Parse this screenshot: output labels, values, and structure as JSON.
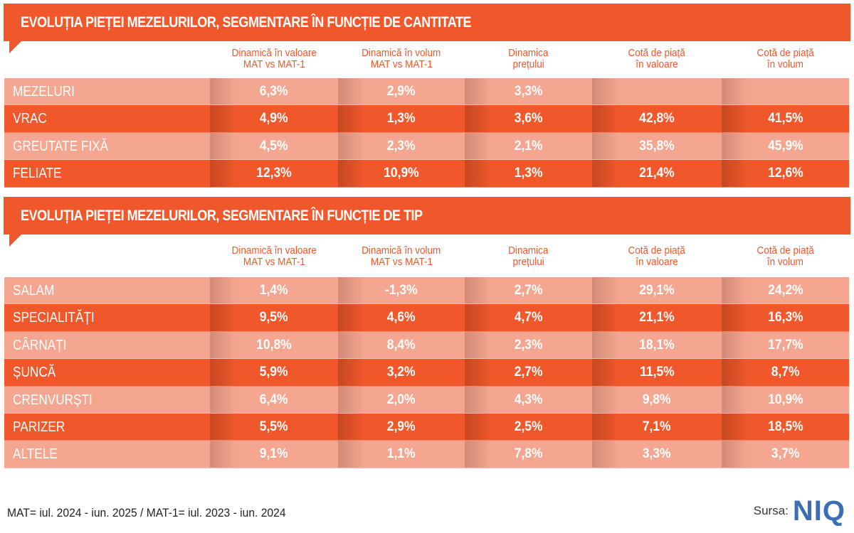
{
  "colors": {
    "accent": "#f0582b",
    "light_row": "#f4a690",
    "header_text": "#f0582b",
    "logo": "#3a6fb8"
  },
  "columns": [
    [
      "Dinamică în valoare",
      "MAT vs MAT-1"
    ],
    [
      "Dinamică în volum",
      "MAT vs MAT-1"
    ],
    [
      "Dinamica",
      "prețului"
    ],
    [
      "Cotă de piață",
      "în valoare"
    ],
    [
      "Cotă de piață",
      "în volum"
    ]
  ],
  "tables": [
    {
      "title": "EVOLUȚIA PIEȚEI MEZELURILOR, SEGMENTARE ÎN FUNCȚIE DE CANTITATE",
      "rows": [
        {
          "label": "MEZELURI",
          "values": [
            "6,3%",
            "2,9%",
            "3,3%",
            "",
            ""
          ]
        },
        {
          "label": "VRAC",
          "values": [
            "4,9%",
            "1,3%",
            "3,6%",
            "42,8%",
            "41,5%"
          ]
        },
        {
          "label": "GREUTATE FIXĂ",
          "values": [
            "4,5%",
            "2,3%",
            "2,1%",
            "35,8%",
            "45,9%"
          ]
        },
        {
          "label": "FELIATE",
          "values": [
            "12,3%",
            "10,9%",
            "1,3%",
            "21,4%",
            "12,6%"
          ]
        }
      ]
    },
    {
      "title": "EVOLUȚIA PIEȚEI MEZELURILOR, SEGMENTARE ÎN FUNCȚIE DE TIP",
      "rows": [
        {
          "label": "SALAM",
          "values": [
            "1,4%",
            "-1,3%",
            "2,7%",
            "29,1%",
            "24,2%"
          ]
        },
        {
          "label": "SPECIALITĂȚI",
          "values": [
            "9,5%",
            "4,6%",
            "4,7%",
            "21,1%",
            "16,3%"
          ]
        },
        {
          "label": "CÂRNAȚI",
          "values": [
            "10,8%",
            "8,4%",
            "2,3%",
            "18,1%",
            "17,7%"
          ]
        },
        {
          "label": "ȘUNCĂ",
          "values": [
            "5,9%",
            "3,2%",
            "2,7%",
            "11,5%",
            "8,7%"
          ]
        },
        {
          "label": "CRENVURȘTI",
          "values": [
            "6,4%",
            "2,0%",
            "4,3%",
            "9,8%",
            "10,9%"
          ]
        },
        {
          "label": "PARIZER",
          "values": [
            "5,5%",
            "2,9%",
            "2,5%",
            "7,1%",
            "18,5%"
          ]
        },
        {
          "label": "ALTELE",
          "values": [
            "9,1%",
            "1,1%",
            "7,8%",
            "3,3%",
            "3,7%"
          ]
        }
      ]
    }
  ],
  "footnote": "MAT= iul. 2024 - iun. 2025 / MAT-1= iul. 2023 - iun. 2024",
  "source": {
    "label": "Sursa:",
    "logo_text": "NIQ"
  }
}
